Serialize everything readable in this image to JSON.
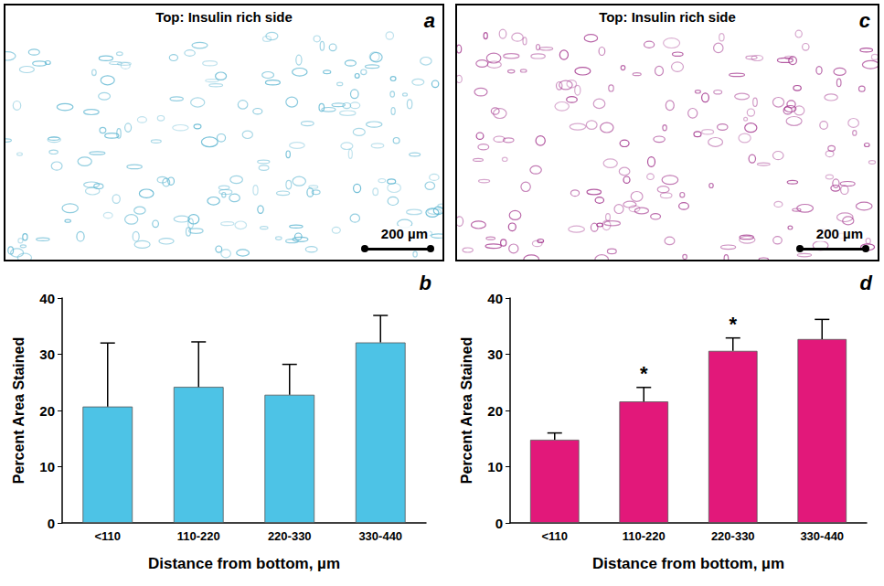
{
  "images": [
    {
      "panel": "a",
      "title": "Top: Insulin rich side",
      "scale_bar": "200 µm",
      "color": "#5ab4d0"
    },
    {
      "panel": "c",
      "title": "Top: Insulin rich side",
      "scale_bar": "200 µm",
      "color": "#a0308a"
    }
  ],
  "chart_data": [
    {
      "panel": "b",
      "type": "bar",
      "categories": [
        "<110",
        "110-220",
        "220-330",
        "330-440"
      ],
      "values": [
        20.7,
        24.2,
        22.8,
        32.1
      ],
      "errors": [
        11.3,
        8.0,
        5.4,
        4.8
      ],
      "color": "#4dc3e6",
      "xlabel": "Distance from bottom, µm",
      "ylabel": "Percent Area Stained",
      "ylim": [
        0,
        40
      ],
      "yticks": [
        0,
        10,
        20,
        30,
        40
      ],
      "grid": false
    },
    {
      "panel": "d",
      "type": "bar",
      "categories": [
        "<110",
        "110-220",
        "220-330",
        "330-440"
      ],
      "values": [
        14.8,
        21.6,
        30.6,
        32.7
      ],
      "errors": [
        1.2,
        2.5,
        2.3,
        3.5
      ],
      "significance": [
        null,
        "*",
        "*",
        null
      ],
      "color": "#e2187a",
      "xlabel": "Distance from bottom, µm",
      "ylabel": "Percent Area Stained",
      "ylim": [
        0,
        40
      ],
      "yticks": [
        0,
        10,
        20,
        30,
        40
      ],
      "grid": false
    }
  ]
}
